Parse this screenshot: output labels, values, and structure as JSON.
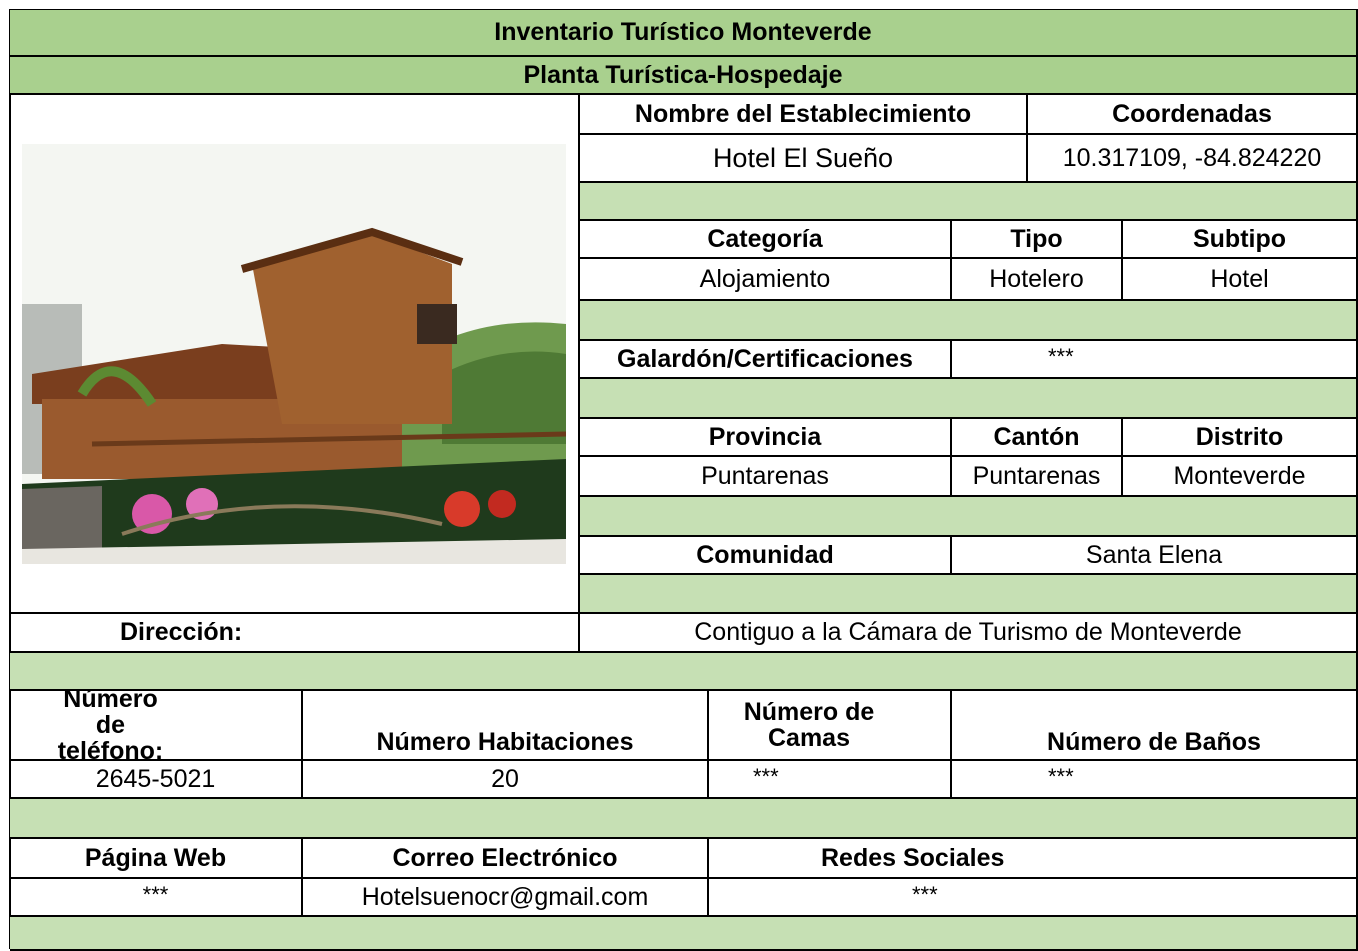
{
  "header": {
    "title": "Inventario Turístico Monteverde",
    "subtitle": "Planta Turística-Hospedaje"
  },
  "establishment": {
    "name_label": "Nombre del Establecimiento",
    "name": "Hotel El Sueño",
    "coordinates_label": "Coordenadas",
    "coordinates": "10.317109, -84.824220"
  },
  "classification": {
    "category_label": "Categoría",
    "category": "Alojamiento",
    "type_label": "Tipo",
    "type": "Hotelero",
    "subtype_label": "Subtipo",
    "subtype": "Hotel"
  },
  "awards": {
    "label": "Galardón/Certificaciones",
    "value": "***"
  },
  "location": {
    "province_label": "Provincia",
    "province": "Puntarenas",
    "canton_label": "Cantón",
    "canton": "Puntarenas",
    "district_label": "Distrito",
    "district": "Monteverde",
    "community_label": "Comunidad",
    "community": "Santa Elena"
  },
  "address": {
    "label": "Dirección:",
    "value": "Contiguo a la Cámara de Turismo de Monteverde"
  },
  "capacity": {
    "phone_label": "Número de teléfono:",
    "phone": "2645-5021",
    "rooms_label": "Número Habitaciones",
    "rooms": "20",
    "beds_label": "Número de Camas",
    "beds": "***",
    "baths_label": "Número de Baños",
    "baths": "***"
  },
  "contact": {
    "web_label": "Página Web",
    "web": "***",
    "email_label": "Correo Electrónico",
    "email": "Hotelsuenocr@gmail.com",
    "social_label": "Redes Sociales",
    "social": "***"
  }
}
